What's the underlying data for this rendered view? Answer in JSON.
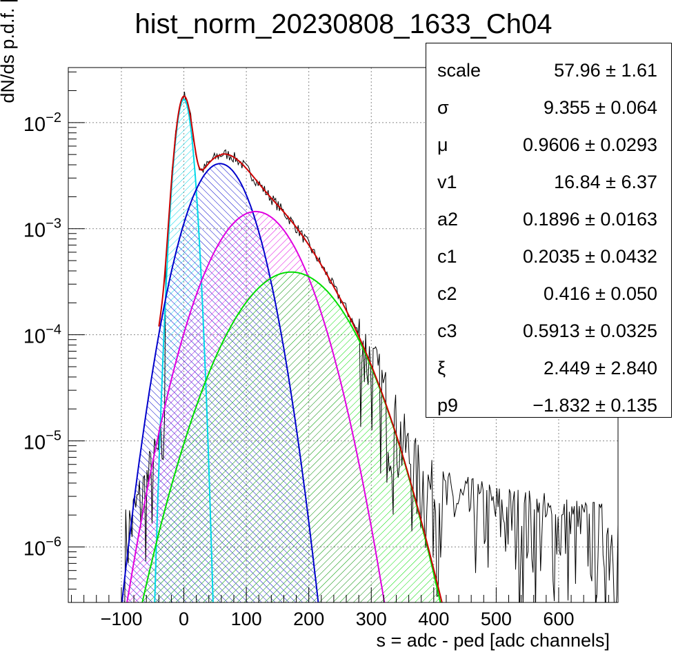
{
  "colors": {
    "data": "#000000",
    "total": "#cc0000",
    "cyan": "#00d8e8",
    "blue": "#0000cc",
    "magenta": "#e000e0",
    "green": "#00dd00",
    "grid": "#888888"
  },
  "chart_data": {
    "type": "line",
    "title": "hist_norm_20230808_1633_Ch04",
    "xlabel": "s = adc - ped [adc channels]",
    "ylabel": "dN/ds p.d.f. [a.u.]",
    "xlim": [
      -185,
      695
    ],
    "ylim": [
      3e-07,
      0.033
    ],
    "yscale": "log",
    "grid": true,
    "x_ticks": [
      -100,
      0,
      100,
      200,
      300,
      400,
      500,
      600
    ],
    "x_tick_labels": [
      "−100",
      "0",
      "100",
      "200",
      "300",
      "400",
      "500",
      "600"
    ],
    "y_ticks": [
      1e-06,
      1e-05,
      0.0001,
      0.001,
      0.01
    ],
    "y_tick_labels": [
      {
        "base": "10",
        "exp": "−6"
      },
      {
        "base": "10",
        "exp": "−5"
      },
      {
        "base": "10",
        "exp": "−4"
      },
      {
        "base": "10",
        "exp": "−3"
      },
      {
        "base": "10",
        "exp": "−2"
      }
    ],
    "series": [
      {
        "key": "pedestal",
        "color": "cyan",
        "peak_x": 0,
        "peak_y": 0.0165,
        "sigma": 10
      },
      {
        "key": "pe1",
        "color": "blue",
        "peak_x": 58,
        "peak_y": 0.0041,
        "sigma": 36
      },
      {
        "key": "pe2",
        "color": "magenta",
        "peak_x": 115,
        "peak_y": 0.00145,
        "sigma": 50
      },
      {
        "key": "pe3",
        "color": "green",
        "peak_x": 172,
        "peak_y": 0.00039,
        "sigma": 63
      },
      {
        "key": "total",
        "color": "total"
      }
    ]
  },
  "stats": [
    {
      "name": "scale",
      "value": "57.96 ± 1.61"
    },
    {
      "name": "σ",
      "value": "9.355 ± 0.064"
    },
    {
      "name": "μ",
      "value": "0.9606 ± 0.0293"
    },
    {
      "name": "v1",
      "value": "16.84 ± 6.37"
    },
    {
      "name": "a2",
      "value": "0.1896 ± 0.0163"
    },
    {
      "name": "c1",
      "value": "0.2035 ± 0.0432"
    },
    {
      "name": "c2",
      "value": "0.416 ± 0.050"
    },
    {
      "name": "c3",
      "value": "0.5913 ± 0.0325"
    },
    {
      "name": "ξ",
      "value": "2.449 ± 2.840"
    },
    {
      "name": "p9",
      "value": "−1.832 ± 0.135"
    }
  ]
}
